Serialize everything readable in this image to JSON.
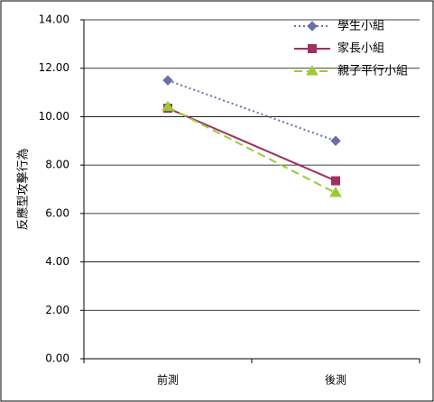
{
  "chart_data": {
    "type": "line",
    "title": "",
    "xlabel": "",
    "ylabel": "反應型攻擊行為",
    "categories": [
      "前測",
      "後測"
    ],
    "ylim": [
      0,
      14
    ],
    "y_ticks": [
      "0.00",
      "2.00",
      "4.00",
      "6.00",
      "8.00",
      "10.00",
      "12.00",
      "14.00"
    ],
    "grid": true,
    "legend_position": "top-right",
    "series": [
      {
        "name": "學生小組",
        "values": [
          11.5,
          9.0
        ],
        "color": "#6B6FA8",
        "line_style": "dotted",
        "marker": "diamond"
      },
      {
        "name": "家長小組",
        "values": [
          10.35,
          7.35
        ],
        "color": "#A0305E",
        "line_style": "solid",
        "marker": "square"
      },
      {
        "name": "親子平行小組",
        "values": [
          10.4,
          6.85
        ],
        "color": "#99CC33",
        "line_style": "dashed",
        "marker": "triangle"
      }
    ]
  }
}
